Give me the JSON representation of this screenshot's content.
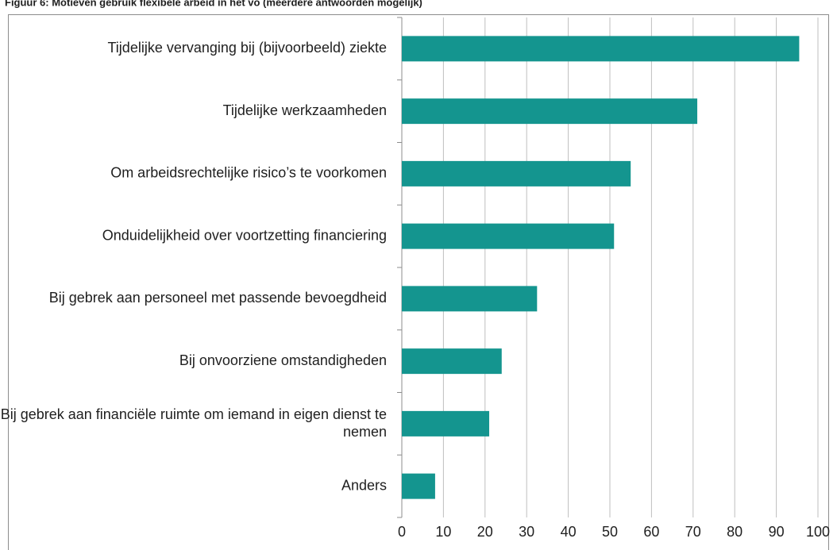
{
  "chart_data": {
    "type": "bar",
    "orientation": "horizontal",
    "title": "Figuur 6: Motieven gebruik flexibele arbeid in het vo (meerdere antwoorden mogelijk)",
    "categories": [
      "Tijdelijke vervanging bij (bijvoorbeeld) ziekte",
      "Tijdelijke werkzaamheden",
      "Om arbeidsrechtelijke risico’s te voorkomen",
      "Onduidelijkheid over voortzetting financiering",
      "Bij gebrek aan personeel met passende bevoegdheid",
      "Bij onvoorziene omstandigheden",
      "Bij gebrek aan financiële ruimte om iemand in eigen dienst te nemen",
      "Anders"
    ],
    "values": [
      95.5,
      71,
      55,
      51,
      32.5,
      24,
      21,
      8
    ],
    "color": "#14958f",
    "xlim": [
      0,
      100
    ],
    "xticks": [
      0,
      10,
      20,
      30,
      40,
      50,
      60,
      70,
      80,
      90,
      100
    ],
    "grid": true
  }
}
